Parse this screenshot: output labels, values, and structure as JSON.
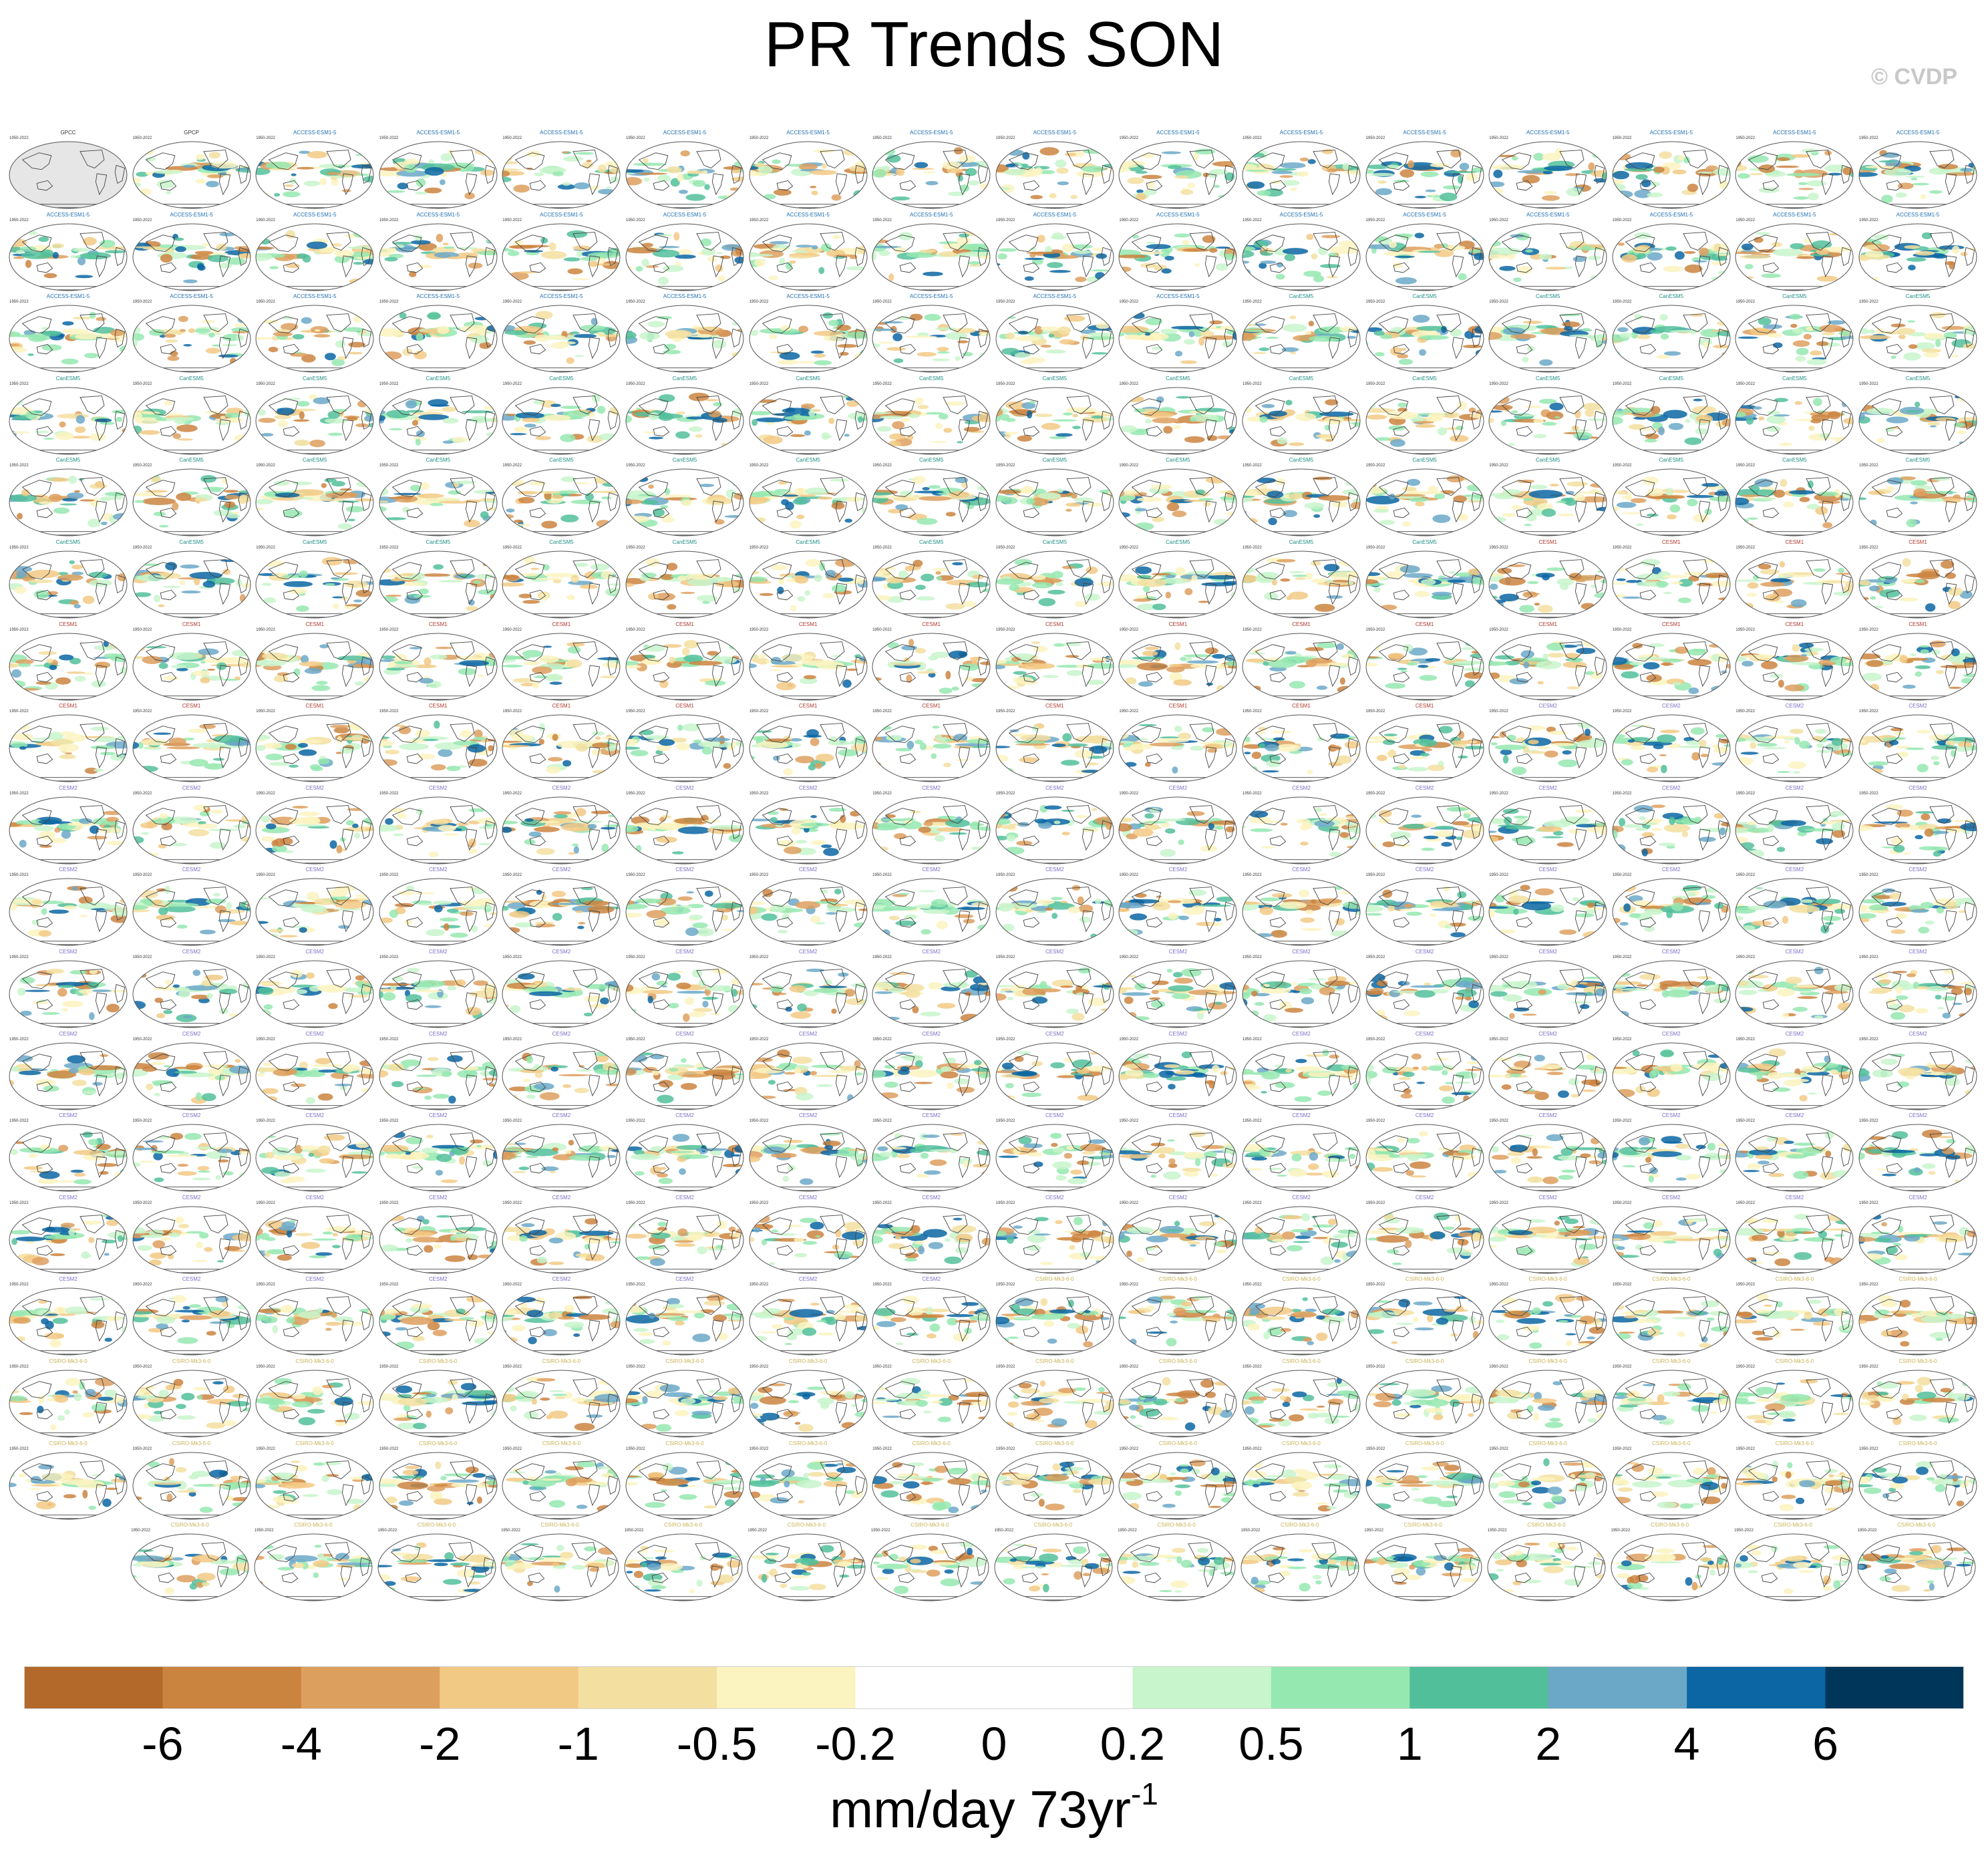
{
  "header": {
    "title": "PR Trends SON",
    "watermark": "© CVDP"
  },
  "colors": {
    "brown_dark": "#b3692a",
    "green": "#52bf9b",
    "blue": "#0b66a3",
    "navy": "#003659",
    "land": "#e6e6e6"
  },
  "chart_data": {
    "type": "heatmap",
    "description_kind": "map-panel-grid",
    "title": "PR Trends SON",
    "panel_layout": {
      "rows": 18,
      "columns": 16,
      "last_row_columns": 15
    },
    "observation_panels": [
      {
        "label": "GPCC",
        "years": "1950-2022"
      },
      {
        "label": "GPCP",
        "years": "1979-2022"
      }
    ],
    "model_groups": [
      {
        "model": "ACCESS-ESM1-5",
        "label_color": "#1f6fb0"
      },
      {
        "model": "CanESM5",
        "label_color": "#1f8f84"
      },
      {
        "model": "CESM1",
        "label_color": "#b03a2e"
      },
      {
        "model": "CESM2",
        "label_color": "#7b6fc4"
      },
      {
        "model": "CSIRO-Mk3-6-0",
        "label_color": "#c9b458"
      }
    ],
    "years": "1950-2022",
    "colorbar": {
      "units": "mm/day 73yr",
      "units_superscript": "-1",
      "tick_labels": [
        "-6",
        "-4",
        "-2",
        "-1",
        "-0.5",
        "-0.2",
        "0",
        "0.2",
        "0.5",
        "1",
        "2",
        "4",
        "6"
      ],
      "bins": [
        "#b3692a",
        "#cb8440",
        "#dd9f5e",
        "#f2c984",
        "#f3dfa0",
        "#fbf3c0",
        "#ffffff",
        "#ffffff",
        "#c8f5cb",
        "#95e8b0",
        "#52bf9b",
        "#6ba8c8",
        "#0b66a3",
        "#003659"
      ]
    }
  }
}
